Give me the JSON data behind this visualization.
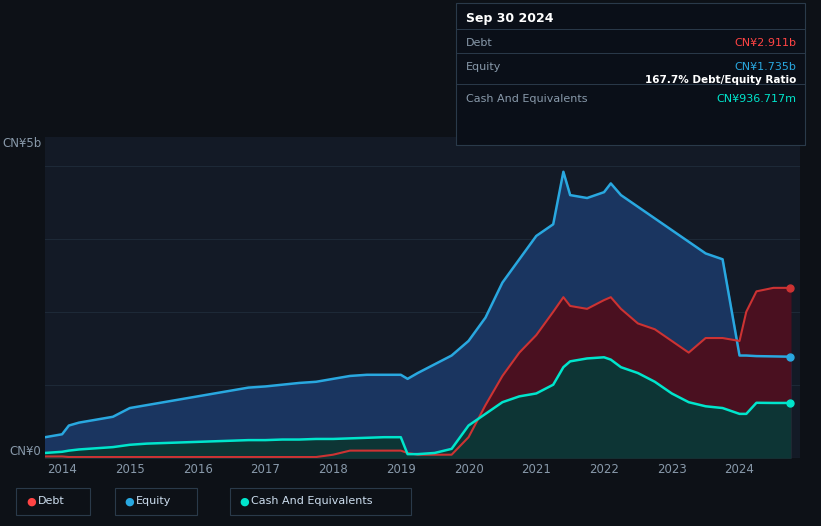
{
  "bg_color": "#0d1117",
  "plot_bg_color": "#131a26",
  "title_box": {
    "date": "Sep 30 2024",
    "debt_label": "Debt",
    "debt_value": "CN¥2.911b",
    "debt_color": "#ff4444",
    "equity_label": "Equity",
    "equity_value": "CN¥1.735b",
    "equity_color": "#29a8e0",
    "ratio_text": "167.7% Debt/Equity Ratio",
    "ratio_color": "#ffffff",
    "cash_label": "Cash And Equivalents",
    "cash_value": "CN¥936.717m",
    "cash_color": "#00e5cc"
  },
  "legend": [
    {
      "label": "Debt",
      "color": "#ff4444"
    },
    {
      "label": "Equity",
      "color": "#29a8e0"
    },
    {
      "label": "Cash And Equivalents",
      "color": "#00e5cc"
    }
  ],
  "years": [
    2013.75,
    2014.0,
    2014.1,
    2014.25,
    2014.5,
    2014.75,
    2015.0,
    2015.25,
    2015.5,
    2015.75,
    2016.0,
    2016.25,
    2016.5,
    2016.75,
    2017.0,
    2017.25,
    2017.5,
    2017.75,
    2018.0,
    2018.25,
    2018.5,
    2018.75,
    2019.0,
    2019.1,
    2019.25,
    2019.5,
    2019.75,
    2020.0,
    2020.25,
    2020.5,
    2020.75,
    2021.0,
    2021.25,
    2021.4,
    2021.5,
    2021.75,
    2022.0,
    2022.1,
    2022.25,
    2022.5,
    2022.75,
    2023.0,
    2023.25,
    2023.5,
    2023.75,
    2024.0,
    2024.1,
    2024.25,
    2024.5,
    2024.75
  ],
  "debt": [
    0.02,
    0.02,
    0.01,
    0.01,
    0.01,
    0.01,
    0.01,
    0.01,
    0.01,
    0.01,
    0.01,
    0.01,
    0.01,
    0.01,
    0.01,
    0.01,
    0.01,
    0.01,
    0.05,
    0.12,
    0.12,
    0.12,
    0.12,
    0.08,
    0.05,
    0.05,
    0.05,
    0.35,
    0.9,
    1.4,
    1.8,
    2.1,
    2.5,
    2.75,
    2.6,
    2.55,
    2.7,
    2.75,
    2.55,
    2.3,
    2.2,
    2.0,
    1.8,
    2.05,
    2.05,
    2.0,
    2.5,
    2.85,
    2.91,
    2.91
  ],
  "equity": [
    0.35,
    0.4,
    0.55,
    0.6,
    0.65,
    0.7,
    0.85,
    0.9,
    0.95,
    1.0,
    1.05,
    1.1,
    1.15,
    1.2,
    1.22,
    1.25,
    1.28,
    1.3,
    1.35,
    1.4,
    1.42,
    1.42,
    1.42,
    1.35,
    1.45,
    1.6,
    1.75,
    2.0,
    2.4,
    3.0,
    3.4,
    3.8,
    4.0,
    4.9,
    4.5,
    4.45,
    4.55,
    4.7,
    4.5,
    4.3,
    4.1,
    3.9,
    3.7,
    3.5,
    3.4,
    1.75,
    1.75,
    1.74,
    1.735,
    1.73
  ],
  "cash": [
    0.08,
    0.1,
    0.12,
    0.14,
    0.16,
    0.18,
    0.22,
    0.24,
    0.25,
    0.26,
    0.27,
    0.28,
    0.29,
    0.3,
    0.3,
    0.31,
    0.31,
    0.32,
    0.32,
    0.33,
    0.34,
    0.35,
    0.35,
    0.06,
    0.06,
    0.08,
    0.15,
    0.55,
    0.75,
    0.95,
    1.05,
    1.1,
    1.25,
    1.55,
    1.65,
    1.7,
    1.72,
    1.68,
    1.55,
    1.45,
    1.3,
    1.1,
    0.95,
    0.88,
    0.85,
    0.75,
    0.75,
    0.94,
    0.937,
    0.937
  ],
  "ylim": [
    0,
    5.5
  ],
  "xlim": [
    2013.75,
    2024.9
  ],
  "y_ticks": [
    0,
    1.25,
    2.5,
    3.75,
    5.0
  ],
  "x_ticks": [
    2014,
    2015,
    2016,
    2017,
    2018,
    2019,
    2020,
    2021,
    2022,
    2023,
    2024
  ]
}
